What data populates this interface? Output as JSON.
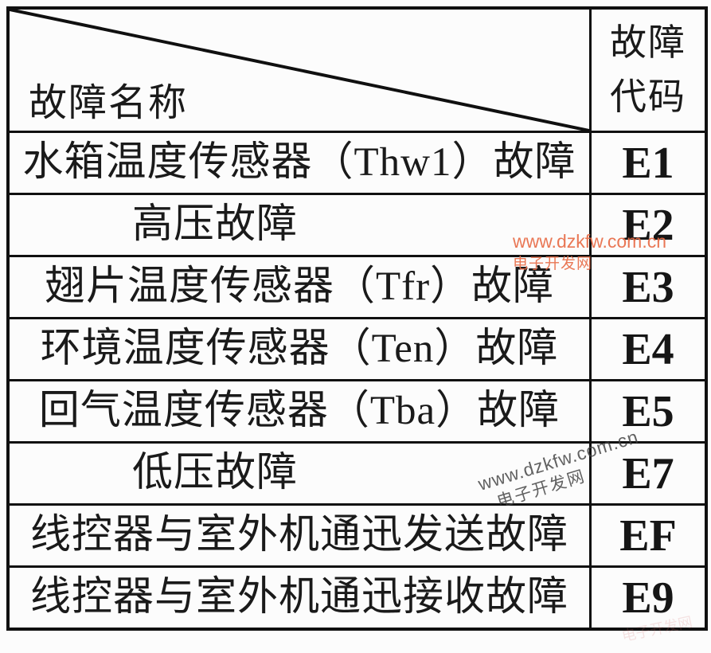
{
  "table": {
    "header": {
      "name_label": "故障名称",
      "code_label_line1": "故障",
      "code_label_line2": "代码"
    },
    "rows": [
      {
        "name": "水箱温度传感器（Thw1）故障",
        "code": "E1",
        "short": false
      },
      {
        "name": "高压故障",
        "code": "E2",
        "short": true
      },
      {
        "name": "翅片温度传感器（Tfr）故障",
        "code": "E3",
        "short": false
      },
      {
        "name": "环境温度传感器（Ten）故障",
        "code": "E4",
        "short": false
      },
      {
        "name": "回气温度传感器（Tba）故障",
        "code": "E5",
        "short": false
      },
      {
        "name": "低压故障",
        "code": "E7",
        "short": true
      },
      {
        "name": "线控器与室外机通迅发送故障",
        "code": "EF",
        "short": false
      },
      {
        "name": "线控器与室外机通迅接收故障",
        "code": "E9",
        "short": false
      }
    ]
  },
  "watermarks": {
    "orange": {
      "line1": "www.dzkfw.com.cn",
      "line2": "电子开发网",
      "color": "#e86c47"
    },
    "gray_diagonal": {
      "line1": "www.dzkfw.com.cn",
      "line2": "电子开发网",
      "color": "#404040"
    },
    "faint": {
      "text": "电子开发网",
      "color": "#d56a6a"
    }
  },
  "colors": {
    "background": "#fcfcfc",
    "border": "#101010",
    "text": "#1a1a1a"
  }
}
